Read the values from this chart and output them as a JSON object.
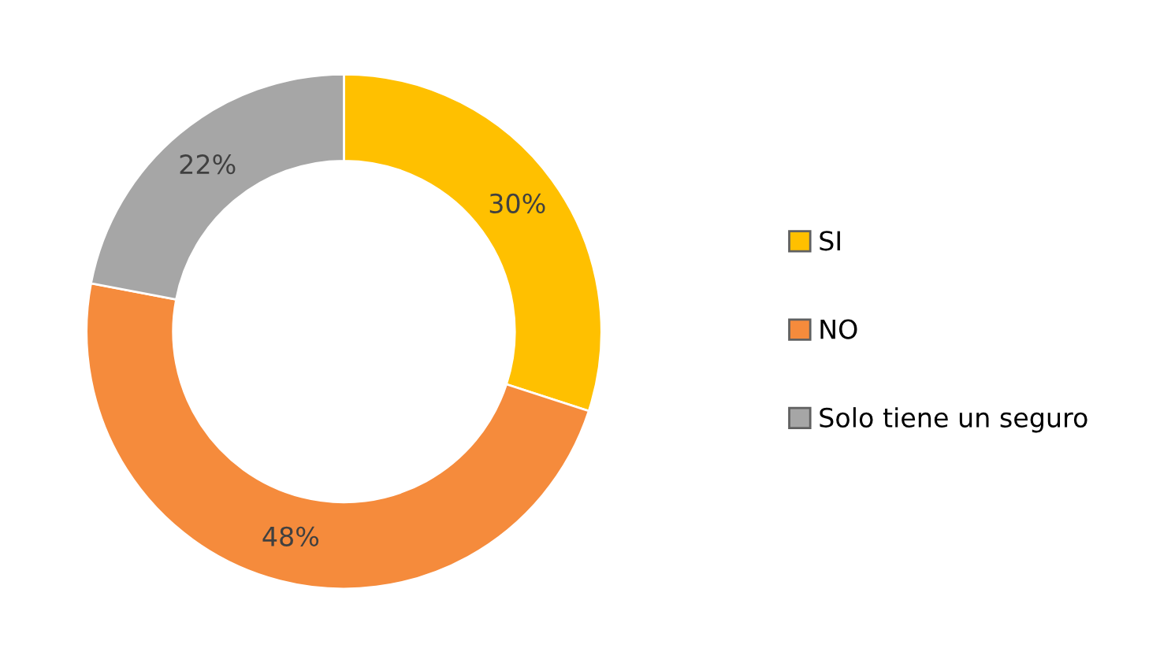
{
  "chart_data": {
    "type": "donut",
    "categories": [
      "SI",
      "NO",
      "Solo tiene un seguro"
    ],
    "values": [
      30,
      48,
      22
    ],
    "colors": [
      "#ffc000",
      "#f58b3c",
      "#a6a6a6"
    ],
    "value_labels": [
      "30%",
      "48%",
      "22%"
    ],
    "legend": "right"
  }
}
